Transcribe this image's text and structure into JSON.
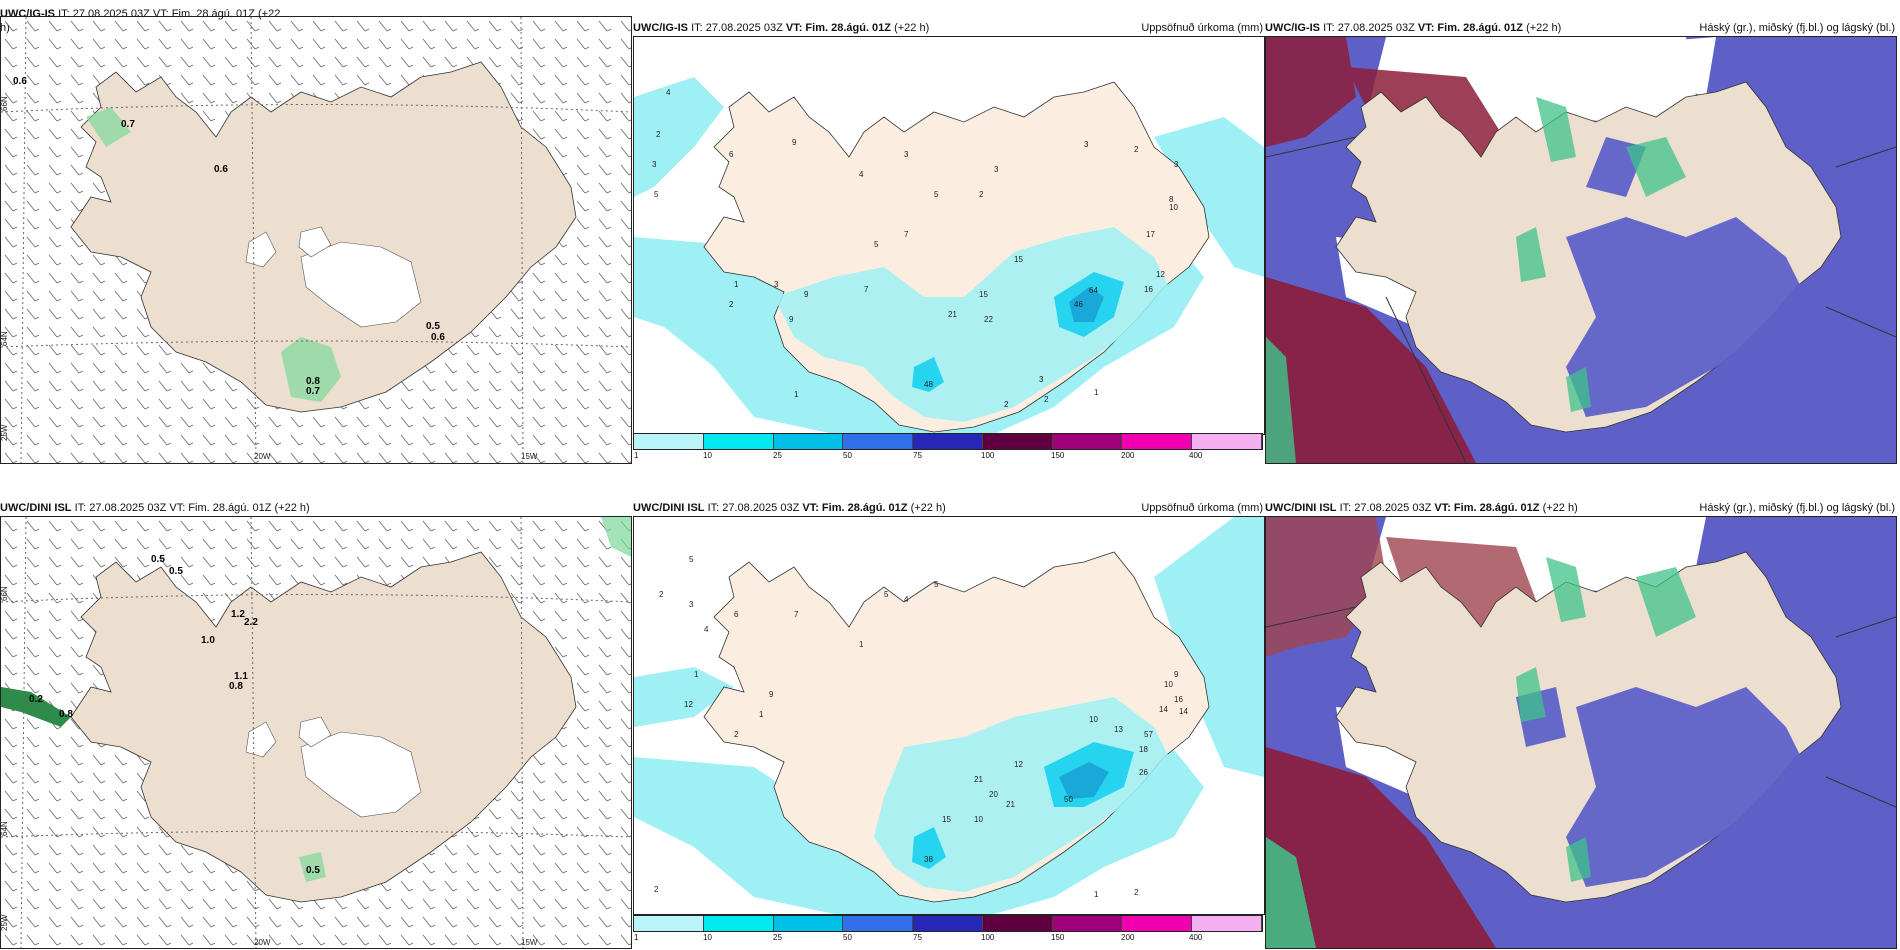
{
  "rows": [
    {
      "model": "UWC/IG-IS",
      "left_header_model": "UWC/IG-IS",
      "left_header_tail": "IT: 27.08.2025 03Z VT: Fim. 28.ágú. 01Z (+22",
      "left_header_wrap": "h)"
    },
    {
      "model": "UWC/DINI ISL",
      "left_header_model": "UWC/DINI ISL",
      "left_header_tail": "IT: 27.08.2025 03Z VT: Fim. 28.ágú. 01Z (+22 h)",
      "left_header_wrap": ""
    }
  ],
  "header": {
    "it": "IT: 27.08.2025 03Z",
    "vt_label": "VT:",
    "vt": "Fim. 28.ágú. 01Z",
    "lead": "(+22 h)"
  },
  "precip_title": "Uppsöfnuð úrkoma (mm)",
  "cloud_title": "Háský (gr.), miðský (fj.bl.) og lágský (bl.)",
  "axes": {
    "lat_66": "66N",
    "lat_64": "64N",
    "lat_65": "65N",
    "lat_25w": "25W",
    "lon_20w": "20W",
    "lon_15w": "15W"
  },
  "colorbar": {
    "ticks": [
      "1",
      "10",
      "25",
      "50",
      "75",
      "100",
      "150",
      "200",
      "400"
    ],
    "colors": [
      "#b8f4f8",
      "#00e8f0",
      "#00c0e8",
      "#3070e8",
      "#2828b8",
      "#600040",
      "#a0007a",
      "#f000b0",
      "#f4b0f0"
    ]
  },
  "wind_labels_top": [
    "0.6",
    "0.7",
    "0.6",
    "0.5",
    "0.6",
    "0.8",
    "0.7"
  ],
  "wind_labels_bottom": [
    "0.5",
    "0.5",
    "1.2",
    "2.2",
    "1.0",
    "1.1",
    "0.8",
    "0.2",
    "0.8",
    "0.5"
  ],
  "precip_labels_top": [
    "4",
    "2",
    "3",
    "1",
    "3",
    "5",
    "9",
    "6",
    "5",
    "4",
    "7",
    "3",
    "2",
    "3",
    "1",
    "5",
    "2",
    "9",
    "9",
    "7",
    "21",
    "15",
    "22",
    "15",
    "48",
    "3",
    "64",
    "46",
    "17",
    "12",
    "16",
    "8",
    "2",
    "2",
    "1",
    "3",
    "10",
    "2",
    "3"
  ],
  "precip_labels_bottom": [
    "5",
    "2",
    "3",
    "4",
    "6",
    "1",
    "12",
    "9",
    "1",
    "2",
    "5",
    "4",
    "7",
    "5",
    "1",
    "21",
    "20",
    "21",
    "10",
    "15",
    "38",
    "12",
    "10",
    "13",
    "50",
    "57",
    "18",
    "26",
    "16",
    "14",
    "14",
    "10",
    "9",
    "2",
    "1",
    "2"
  ],
  "colors": {
    "land": "#eddfcf",
    "sea": "#ffffff",
    "cyan": "#9ff0f4",
    "cyan2": "#26d4f0",
    "blue": "#5e60c8",
    "maroon": "#8c1d3a",
    "green": "#3fc38a"
  }
}
